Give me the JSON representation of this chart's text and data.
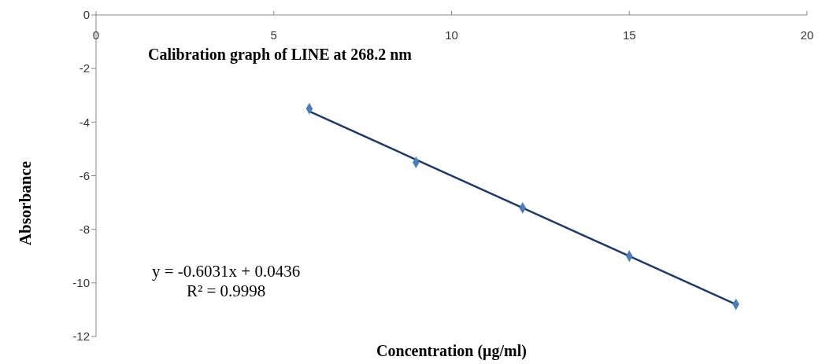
{
  "chart_data": {
    "type": "scatter",
    "title": "Calibration graph of LINE at 268.2 nm",
    "xlabel": "Concentration (μg/ml)",
    "ylabel": "Absorbance",
    "annotations": [
      "y = -0.6031x + 0.0436",
      "R² = 0.9998"
    ],
    "series": [
      {
        "marker": "diamond",
        "color": "#4a7ebb",
        "x": [
          6,
          9,
          12,
          15,
          18
        ],
        "values": [
          -3.5,
          -5.5,
          -7.2,
          -9,
          -10.8
        ]
      },
      {
        "type": "line",
        "marker": "none",
        "color": "#1f3a68",
        "x": [
          6,
          18
        ],
        "values": [
          -3.6,
          -10.8
        ]
      }
    ],
    "xlim": [
      0,
      20
    ],
    "xticks": [
      0,
      5,
      10,
      15,
      20
    ],
    "ylim": [
      -12,
      0
    ],
    "yticks": [
      -12,
      -10,
      -8,
      -6,
      -4,
      -2,
      0
    ],
    "grid": false
  }
}
